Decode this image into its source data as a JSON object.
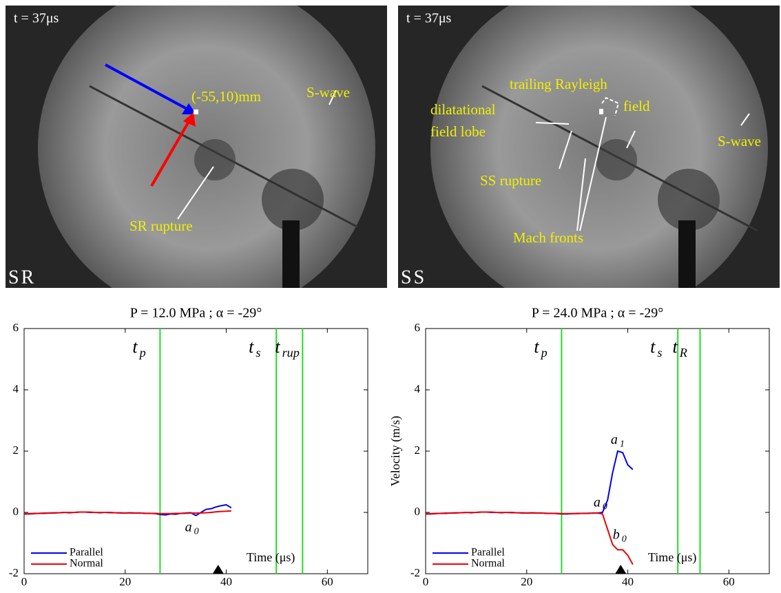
{
  "images": [
    {
      "time": "t = 37μs",
      "panel": "SR",
      "labels": [
        "(-55,10)mm",
        "S-wave",
        "SR rupture"
      ]
    },
    {
      "time": "t = 37μs",
      "panel": "SS",
      "labels": [
        [
          "dilatational",
          "field lobe"
        ],
        [
          "trailing Rayleigh",
          "field"
        ],
        "S-wave",
        "SS rupture",
        "Mach fronts"
      ]
    }
  ],
  "chart_data": [
    {
      "type": "line",
      "title": "P = 12.0 MPa ; α = -29°",
      "xlabel": "Time (μs)",
      "xlim": [
        0,
        68
      ],
      "ylim": [
        -2,
        6
      ],
      "xticks": [
        0,
        20,
        40,
        60
      ],
      "yticks": [
        -2,
        0,
        2,
        4,
        6
      ],
      "legend": "lower left",
      "x": [
        0,
        1,
        2,
        3,
        4,
        5,
        6,
        7,
        8,
        9,
        10,
        11,
        12,
        13,
        14,
        15,
        16,
        17,
        18,
        19,
        20,
        21,
        22,
        23,
        24,
        25,
        26,
        27,
        28,
        29,
        30,
        31,
        32,
        33,
        34,
        35,
        36,
        37,
        38,
        39,
        40,
        41
      ],
      "series": [
        {
          "name": "Parallel",
          "color": "#0000ee",
          "values": [
            -0.05,
            -0.05,
            -0.04,
            -0.03,
            -0.03,
            -0.02,
            -0.02,
            -0.01,
            0,
            -0.01,
            0,
            0.01,
            0.01,
            0,
            0,
            -0.01,
            0,
            0,
            -0.01,
            -0.02,
            -0.02,
            -0.01,
            -0.02,
            -0.02,
            -0.03,
            -0.03,
            -0.04,
            -0.07,
            -0.08,
            -0.05,
            -0.06,
            -0.03,
            -0.02,
            -0.01,
            -0.1,
            0,
            0.1,
            0.12,
            0.18,
            0.22,
            0.25,
            0.15
          ]
        },
        {
          "name": "Normal",
          "color": "#ee0000",
          "values": [
            -0.04,
            -0.04,
            -0.03,
            -0.03,
            -0.02,
            -0.02,
            -0.01,
            -0.01,
            0,
            0,
            0,
            0.01,
            0.01,
            0.01,
            0,
            0,
            0,
            -0.01,
            -0.01,
            -0.01,
            -0.02,
            -0.02,
            -0.02,
            -0.02,
            -0.03,
            -0.03,
            -0.03,
            -0.04,
            -0.04,
            -0.04,
            -0.03,
            -0.03,
            -0.03,
            -0.02,
            -0.02,
            -0.02,
            -0.01,
            0,
            0.02,
            0.03,
            0.04,
            0.05
          ]
        }
      ],
      "vlines": [
        {
          "value": 26.9,
          "label": "t",
          "sub": "p"
        },
        {
          "value": 49.9,
          "label": "t",
          "sub": "s"
        },
        {
          "value": 55.1,
          "label": "t",
          "sub": "rup"
        }
      ],
      "annotations": [
        {
          "text": "a",
          "sub": "0"
        }
      ],
      "marker_x": 38.4
    },
    {
      "type": "line",
      "title": "P = 24.0 MPa ; α = -29°",
      "xlabel": "Time (μs)",
      "ylabel": "Velocity (m/s)",
      "xlim": [
        0,
        68
      ],
      "ylim": [
        -2,
        6
      ],
      "xticks": [
        0,
        20,
        40,
        60
      ],
      "yticks": [
        -2,
        0,
        2,
        4,
        6
      ],
      "legend": "lower left",
      "x": [
        0,
        1,
        2,
        3,
        4,
        5,
        6,
        7,
        8,
        9,
        10,
        11,
        12,
        13,
        14,
        15,
        16,
        17,
        18,
        19,
        20,
        21,
        22,
        23,
        24,
        25,
        26,
        27,
        28,
        29,
        30,
        31,
        32,
        33,
        34,
        35,
        36,
        37,
        38,
        39,
        40,
        41
      ],
      "series": [
        {
          "name": "Parallel",
          "color": "#0000ee",
          "values": [
            -0.05,
            -0.05,
            -0.04,
            -0.03,
            -0.03,
            -0.02,
            -0.02,
            -0.01,
            0,
            -0.01,
            0,
            0.01,
            0.01,
            0,
            0,
            -0.01,
            0,
            0,
            -0.01,
            -0.02,
            -0.02,
            -0.01,
            -0.02,
            -0.02,
            -0.03,
            -0.03,
            -0.04,
            -0.05,
            -0.05,
            -0.04,
            -0.04,
            -0.03,
            -0.03,
            -0.02,
            -0.02,
            0,
            0.4,
            1.3,
            2.0,
            1.95,
            1.55,
            1.4
          ]
        },
        {
          "name": "Normal",
          "color": "#ee0000",
          "values": [
            -0.04,
            -0.04,
            -0.03,
            -0.03,
            -0.02,
            -0.02,
            -0.01,
            -0.01,
            0,
            0,
            0,
            0.01,
            0.01,
            0.01,
            0,
            0,
            0,
            -0.01,
            -0.01,
            -0.01,
            -0.02,
            -0.02,
            -0.02,
            -0.02,
            -0.03,
            -0.03,
            -0.03,
            -0.04,
            -0.04,
            -0.04,
            -0.03,
            -0.03,
            -0.03,
            -0.02,
            -0.02,
            -0.05,
            -0.55,
            -1.05,
            -1.22,
            -1.22,
            -1.4,
            -1.7
          ]
        }
      ],
      "vlines": [
        {
          "value": 26.9,
          "label": "t",
          "sub": "p"
        },
        {
          "value": 49.9,
          "label": "t",
          "sub": "s"
        },
        {
          "value": 54.3,
          "label": "t",
          "sub": "R"
        }
      ],
      "annotations": [
        {
          "text": "a",
          "sub": "0"
        },
        {
          "text": "a",
          "sub": "1"
        },
        {
          "text": "b",
          "sub": "0"
        }
      ],
      "marker_x": 38.6
    }
  ]
}
